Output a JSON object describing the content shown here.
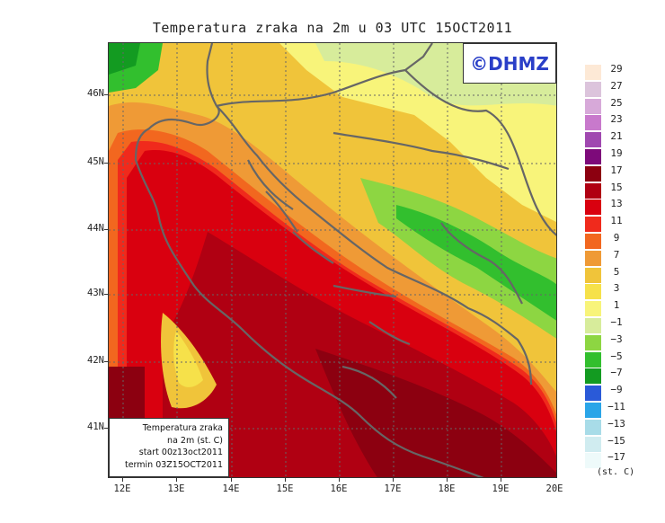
{
  "title": "Temperatura zraka na 2m u 03 UTC 15OCT2011",
  "logo": "©DHMZ",
  "info_box": {
    "line1": "Temperatura zraka",
    "line2": "na 2m (st. C)",
    "line3": "start 00z13oct2011",
    "line4": "termin 03Z15OCT2011"
  },
  "lat_labels": [
    "46N",
    "45N",
    "44N",
    "43N",
    "42N",
    "41N"
  ],
  "lon_labels": [
    "12E",
    "13E",
    "14E",
    "15E",
    "16E",
    "17E",
    "18E",
    "19E",
    "20E"
  ],
  "legend": {
    "unit": "(st. C)",
    "labels": [
      "29",
      "27",
      "25",
      "23",
      "21",
      "19",
      "17",
      "15",
      "13",
      "11",
      "9",
      "7",
      "5",
      "3",
      "1",
      "−1",
      "−3",
      "−5",
      "−7",
      "−9",
      "−11",
      "−13",
      "−15",
      "−17"
    ],
    "colors": [
      "#fde9d6",
      "#dcc4dc",
      "#d7a9d9",
      "#c879cc",
      "#a048b0",
      "#7d0a7a",
      "#8c0010",
      "#b00012",
      "#d9000f",
      "#f02a1c",
      "#f2671f",
      "#ef9a36",
      "#f0c43a",
      "#f6e14a",
      "#f8f47a",
      "#d7ec9b",
      "#8dd642",
      "#32bf2e",
      "#139b21",
      "#2a5ad8",
      "#2aa5e8",
      "#a8dce8",
      "#d0ecf0",
      "#eefafa"
    ]
  }
}
